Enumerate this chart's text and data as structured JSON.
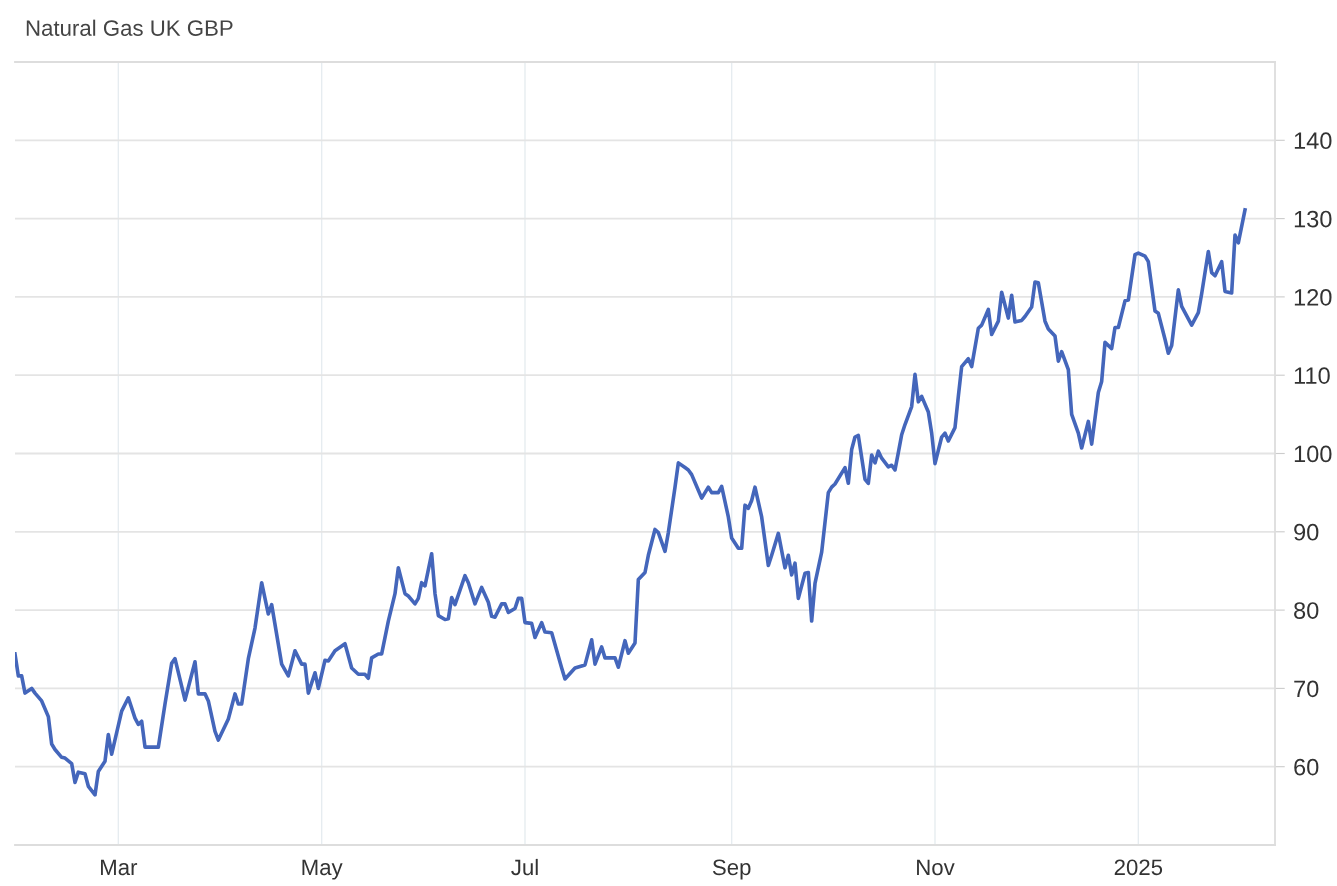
{
  "chart_data": {
    "type": "line",
    "title": "Natural Gas UK GBP",
    "x": [
      "2024-01-30",
      "2024-01-31",
      "2024-02-01",
      "2024-02-02",
      "2024-02-04",
      "2024-02-05",
      "2024-02-07",
      "2024-02-09",
      "2024-02-10",
      "2024-02-11",
      "2024-02-13",
      "2024-02-14",
      "2024-02-16",
      "2024-02-17",
      "2024-02-18",
      "2024-02-20",
      "2024-02-21",
      "2024-02-23",
      "2024-02-24",
      "2024-02-26",
      "2024-02-27",
      "2024-02-28",
      "2024-03-02",
      "2024-03-04",
      "2024-03-06",
      "2024-03-07",
      "2024-03-08",
      "2024-03-09",
      "2024-03-13",
      "2024-03-15",
      "2024-03-17",
      "2024-03-18",
      "2024-03-21",
      "2024-03-24",
      "2024-03-25",
      "2024-03-27",
      "2024-03-28",
      "2024-03-30",
      "2024-03-31",
      "2024-04-03",
      "2024-04-05",
      "2024-04-06",
      "2024-04-07",
      "2024-04-09",
      "2024-04-11",
      "2024-04-13",
      "2024-04-15",
      "2024-04-16",
      "2024-04-19",
      "2024-04-21",
      "2024-04-23",
      "2024-04-25",
      "2024-04-26",
      "2024-04-27",
      "2024-04-29",
      "2024-04-30",
      "2024-05-02",
      "2024-05-03",
      "2024-05-05",
      "2024-05-08",
      "2024-05-10",
      "2024-05-12",
      "2024-05-14",
      "2024-05-15",
      "2024-05-16",
      "2024-05-18",
      "2024-05-19",
      "2024-05-21",
      "2024-05-23",
      "2024-05-24",
      "2024-05-26",
      "2024-05-27",
      "2024-05-29",
      "2024-05-30",
      "2024-05-31",
      "2024-06-01",
      "2024-06-03",
      "2024-06-04",
      "2024-06-05",
      "2024-06-07",
      "2024-06-08",
      "2024-06-09",
      "2024-06-10",
      "2024-06-13",
      "2024-06-14",
      "2024-06-16",
      "2024-06-18",
      "2024-06-20",
      "2024-06-21",
      "2024-06-22",
      "2024-06-24",
      "2024-06-25",
      "2024-06-26",
      "2024-06-28",
      "2024-06-29",
      "2024-06-30",
      "2024-07-01",
      "2024-07-03",
      "2024-07-04",
      "2024-07-06",
      "2024-07-07",
      "2024-07-09",
      "2024-07-12",
      "2024-07-13",
      "2024-07-16",
      "2024-07-19",
      "2024-07-21",
      "2024-07-22",
      "2024-07-24",
      "2024-07-25",
      "2024-07-28",
      "2024-07-29",
      "2024-07-31",
      "2024-08-01",
      "2024-08-03",
      "2024-08-04",
      "2024-08-06",
      "2024-08-07",
      "2024-08-09",
      "2024-08-10",
      "2024-08-12",
      "2024-08-13",
      "2024-08-15",
      "2024-08-16",
      "2024-08-18",
      "2024-08-19",
      "2024-08-20",
      "2024-08-22",
      "2024-08-23",
      "2024-08-25",
      "2024-08-26",
      "2024-08-28",
      "2024-08-29",
      "2024-08-31",
      "2024-09-01",
      "2024-09-03",
      "2024-09-04",
      "2024-09-05",
      "2024-09-06",
      "2024-09-07",
      "2024-09-08",
      "2024-09-10",
      "2024-09-12",
      "2024-09-13",
      "2024-09-15",
      "2024-09-17",
      "2024-09-18",
      "2024-09-19",
      "2024-09-20",
      "2024-09-21",
      "2024-09-23",
      "2024-09-24",
      "2024-09-25",
      "2024-09-26",
      "2024-09-28",
      "2024-09-30",
      "2024-10-01",
      "2024-10-02",
      "2024-10-05",
      "2024-10-06",
      "2024-10-07",
      "2024-10-08",
      "2024-10-09",
      "2024-10-11",
      "2024-10-12",
      "2024-10-13",
      "2024-10-14",
      "2024-10-15",
      "2024-10-16",
      "2024-10-18",
      "2024-10-19",
      "2024-10-20",
      "2024-10-21",
      "2024-10-22",
      "2024-10-23",
      "2024-10-25",
      "2024-10-26",
      "2024-10-27",
      "2024-10-28",
      "2024-10-30",
      "2024-10-31",
      "2024-11-01",
      "2024-11-03",
      "2024-11-04",
      "2024-11-05",
      "2024-11-07",
      "2024-11-08",
      "2024-11-09",
      "2024-11-11",
      "2024-11-12",
      "2024-11-14",
      "2024-11-15",
      "2024-11-17",
      "2024-11-18",
      "2024-11-20",
      "2024-11-21",
      "2024-11-23",
      "2024-11-24",
      "2024-11-25",
      "2024-11-27",
      "2024-11-28",
      "2024-11-30",
      "2024-12-01",
      "2024-12-02",
      "2024-12-04",
      "2024-12-05",
      "2024-12-07",
      "2024-12-08",
      "2024-12-09",
      "2024-12-11",
      "2024-12-12",
      "2024-12-14",
      "2024-12-15",
      "2024-12-17",
      "2024-12-18",
      "2024-12-20",
      "2024-12-21",
      "2024-12-22",
      "2024-12-24",
      "2024-12-25",
      "2024-12-26",
      "2024-12-28",
      "2024-12-29",
      "2024-12-31",
      "2025-01-01",
      "2025-01-03",
      "2025-01-04",
      "2025-01-06",
      "2025-01-07",
      "2025-01-09",
      "2025-01-10",
      "2025-01-11",
      "2025-01-13",
      "2025-01-14",
      "2025-01-17",
      "2025-01-19",
      "2025-01-20",
      "2025-01-22",
      "2025-01-23",
      "2025-01-24",
      "2025-01-26",
      "2025-01-27",
      "2025-01-29",
      "2025-01-30",
      "2025-01-31",
      "2025-02-02"
    ],
    "series": [
      {
        "color": "#4466bb",
        "values": [
          74.4,
          71.6,
          71.6,
          69.4,
          70.0,
          69.4,
          68.4,
          66.4,
          62.9,
          62.2,
          61.2,
          61.1,
          60.4,
          58.0,
          59.3,
          59.1,
          57.5,
          56.4,
          59.4,
          60.7,
          64.1,
          61.6,
          67.1,
          68.8,
          66.2,
          65.4,
          65.8,
          62.5,
          62.5,
          68.0,
          73.2,
          73.8,
          68.5,
          73.4,
          69.3,
          69.3,
          68.4,
          64.5,
          63.4,
          66.1,
          69.3,
          68.0,
          68.0,
          73.8,
          77.7,
          83.5,
          79.5,
          80.7,
          73.1,
          71.6,
          74.8,
          73.1,
          73.1,
          69.4,
          72.0,
          70.0,
          73.6,
          73.5,
          74.8,
          75.7,
          72.6,
          71.8,
          71.8,
          71.3,
          73.9,
          74.4,
          74.4,
          78.6,
          82.1,
          85.4,
          82.1,
          81.8,
          80.8,
          81.5,
          83.5,
          83.1,
          87.2,
          82.1,
          79.3,
          78.8,
          78.9,
          81.6,
          80.7,
          84.4,
          83.5,
          80.8,
          82.9,
          81.0,
          79.2,
          79.1,
          80.8,
          80.8,
          79.7,
          80.2,
          81.5,
          81.5,
          78.4,
          78.3,
          76.5,
          78.4,
          77.2,
          77.1,
          72.6,
          71.2,
          72.6,
          73.0,
          76.2,
          73.1,
          75.3,
          73.9,
          73.9,
          72.7,
          76.1,
          74.5,
          75.8,
          83.9,
          84.8,
          87.0,
          90.3,
          89.9,
          87.5,
          89.9,
          95.7,
          98.8,
          98.2,
          97.9,
          97.3,
          95.3,
          94.3,
          95.7,
          95.0,
          95.0,
          95.8,
          91.9,
          89.2,
          87.9,
          87.9,
          93.4,
          93.0,
          94.0,
          95.7,
          91.9,
          85.7,
          87.0,
          89.8,
          85.4,
          87.0,
          84.5,
          86.0,
          81.5,
          84.7,
          84.8,
          78.6,
          83.4,
          87.4,
          95.0,
          95.7,
          96.1,
          98.2,
          96.2,
          100.5,
          102.1,
          102.3,
          96.7,
          96.2,
          99.8,
          98.8,
          100.3,
          99.4,
          98.3,
          98.5,
          97.9,
          100.1,
          102.4,
          103.7,
          106.0,
          110.1,
          106.6,
          107.3,
          105.3,
          102.6,
          98.7,
          102.1,
          102.6,
          101.6,
          103.3,
          107.3,
          111.1,
          112.1,
          111.1,
          116.0,
          116.4,
          118.4,
          115.2,
          116.9,
          120.6,
          117.3,
          120.2,
          116.8,
          117.0,
          117.5,
          118.7,
          121.9,
          121.8,
          116.9,
          115.9,
          115.0,
          111.8,
          113.0,
          110.7,
          105.0,
          102.6,
          100.7,
          104.1,
          101.2,
          107.8,
          109.2,
          114.2,
          113.4,
          116.1,
          116.1,
          119.5,
          119.6,
          125.4,
          125.6,
          125.2,
          124.5,
          118.2,
          117.9,
          114.6,
          112.8,
          113.8,
          120.9,
          118.8,
          116.4,
          118.0,
          120.4,
          125.8,
          123.1,
          122.7,
          124.5,
          120.7,
          120.5,
          127.9,
          126.9,
          131.1
        ]
      }
    ],
    "xlim": [
      "2024-01-30",
      "2025-02-11"
    ],
    "xticks": [
      {
        "value": "2024-03-01",
        "label": "Mar"
      },
      {
        "value": "2024-05-01",
        "label": "May"
      },
      {
        "value": "2024-07-01",
        "label": "Jul"
      },
      {
        "value": "2024-09-01",
        "label": "Sep"
      },
      {
        "value": "2024-11-01",
        "label": "Nov"
      },
      {
        "value": "2025-01-01",
        "label": "2025"
      }
    ],
    "ylim": [
      50,
      150
    ],
    "yticks": [
      60,
      70,
      80,
      90,
      100,
      110,
      120,
      130,
      140
    ],
    "grid": true,
    "marker": "none",
    "line_style": "solid"
  }
}
